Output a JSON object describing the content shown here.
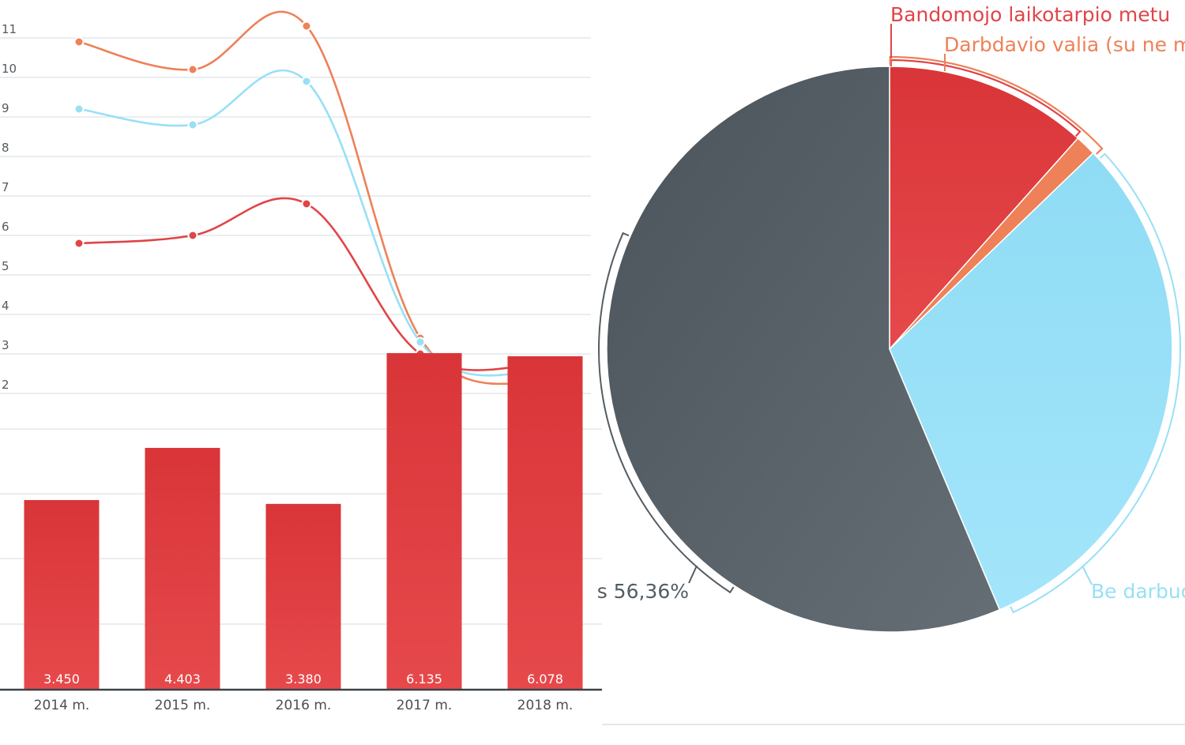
{
  "colors": {
    "red": "#e04548",
    "orange": "#ee8158",
    "lightblue": "#98e0f6",
    "slate": "#535c62",
    "grid": "#dde3e6",
    "axis": "#3a4248"
  },
  "chart_data": [
    {
      "type": "line",
      "y_ticks": [
        "2",
        "3",
        "4",
        "5",
        "6",
        "7",
        "8",
        "9",
        "10",
        "11"
      ],
      "ylim": [
        2,
        11
      ],
      "grid": true,
      "series": [
        {
          "color_key": "orange",
          "values": [
            10.9,
            10.2,
            11.3,
            3.4,
            2.2
          ]
        },
        {
          "color_key": "lightblue",
          "values": [
            9.2,
            8.8,
            9.9,
            3.3,
            2.5
          ]
        },
        {
          "color_key": "red",
          "values": [
            5.8,
            6.0,
            6.8,
            3.0,
            2.7
          ]
        }
      ]
    },
    {
      "type": "bar",
      "categories": [
        "2014 m.",
        "2015 m.",
        "2016 m.",
        "2017 m.",
        "2018 m."
      ],
      "values": [
        3450,
        4403,
        3380,
        6135,
        6078
      ],
      "value_labels": [
        "3.450",
        "4.403",
        "3.380",
        "6.135",
        "6.078"
      ],
      "color_key": "red",
      "grid": true
    },
    {
      "type": "pie",
      "slices": [
        {
          "label": "Bandomojo laikotarpio metu",
          "value": 11.6,
          "color_key": "red"
        },
        {
          "label": "Darbdavio valia (su ne m",
          "value": 1.2,
          "color_key": "orange"
        },
        {
          "label": "Be darbuo",
          "value": 30.84,
          "color_key": "lightblue"
        },
        {
          "label": "s 56,36%",
          "value": 56.36,
          "color_key": "slate"
        }
      ]
    }
  ]
}
